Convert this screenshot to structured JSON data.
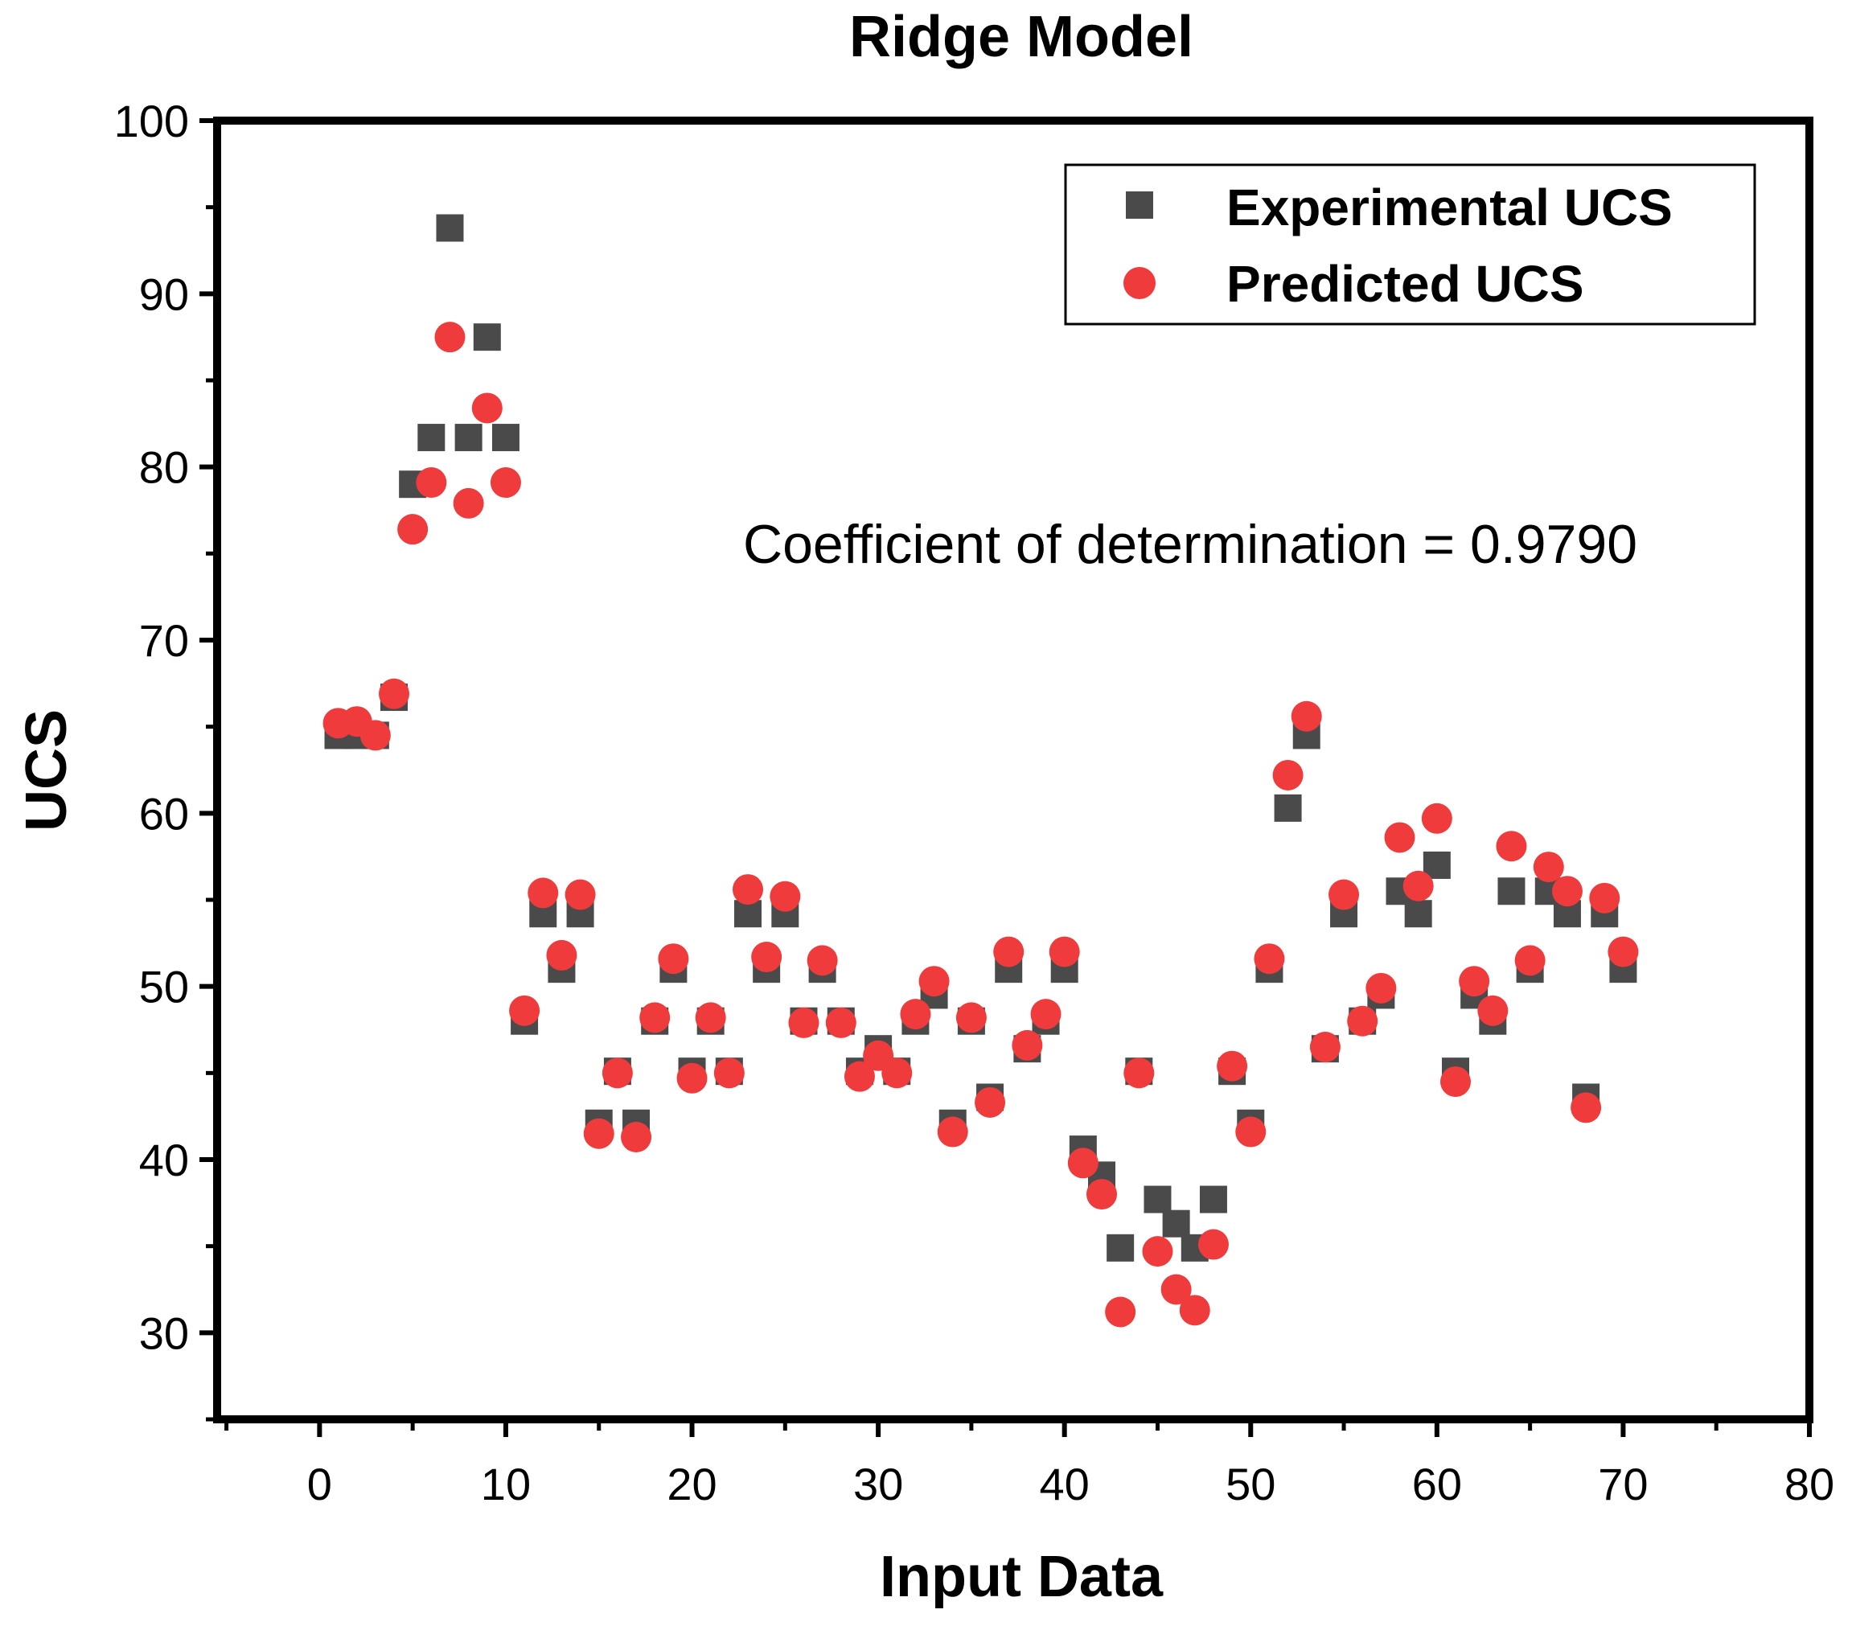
{
  "chart_data": {
    "type": "scatter",
    "title": "Ridge Model",
    "xlabel": "Input Data",
    "ylabel": "UCS",
    "xlim": [
      -5.5,
      80
    ],
    "ylim": [
      25,
      100
    ],
    "xticks": [
      0,
      10,
      20,
      30,
      40,
      50,
      60,
      70,
      80
    ],
    "yticks": [
      30,
      40,
      50,
      60,
      70,
      80,
      90,
      100
    ],
    "legend_position": "top-right",
    "annotation": "Coefficient of determination = 0.9790",
    "colors": {
      "experimental": "#4a4a4a",
      "predicted": "#ef3b3b"
    },
    "x": [
      1,
      2,
      3,
      4,
      5,
      6,
      7,
      8,
      9,
      10,
      11,
      12,
      13,
      14,
      15,
      16,
      17,
      18,
      19,
      20,
      21,
      22,
      23,
      24,
      25,
      26,
      27,
      28,
      29,
      30,
      31,
      32,
      33,
      34,
      35,
      36,
      37,
      38,
      39,
      40,
      41,
      42,
      43,
      44,
      45,
      46,
      47,
      48,
      49,
      50,
      51,
      52,
      53,
      54,
      55,
      56,
      57,
      58,
      59,
      60,
      61,
      62,
      63,
      64,
      65,
      66,
      67,
      68,
      69,
      70
    ],
    "series": [
      {
        "name": "Experimental UCS",
        "marker": "square",
        "values": [
          64.5,
          64.5,
          64.5,
          66.7,
          79.0,
          81.7,
          93.8,
          81.7,
          87.5,
          81.7,
          48.0,
          54.2,
          51.0,
          54.2,
          42.1,
          45.1,
          42.1,
          48.0,
          51.0,
          45.1,
          48.0,
          45.1,
          54.2,
          51.0,
          54.2,
          48.0,
          51.0,
          48.0,
          45.1,
          46.4,
          45.1,
          48.0,
          49.5,
          42.1,
          48.0,
          43.6,
          51.0,
          46.4,
          48.0,
          51.0,
          40.6,
          39.1,
          34.9,
          45.1,
          37.7,
          36.3,
          34.9,
          37.7,
          45.1,
          42.1,
          51.0,
          60.3,
          64.5,
          46.4,
          54.2,
          48.0,
          49.5,
          55.5,
          54.2,
          57.0,
          45.1,
          49.5,
          48.0,
          55.5,
          51.0,
          55.5,
          54.2,
          43.6,
          54.2,
          51.0
        ]
      },
      {
        "name": "Predicted UCS",
        "marker": "circle",
        "values": [
          65.2,
          65.3,
          64.5,
          66.9,
          76.4,
          79.1,
          87.5,
          77.9,
          83.4,
          79.1,
          48.6,
          55.4,
          51.8,
          55.3,
          41.5,
          45.0,
          41.3,
          48.2,
          51.6,
          44.7,
          48.2,
          45.0,
          55.6,
          51.7,
          55.2,
          47.9,
          51.5,
          47.9,
          44.8,
          46.0,
          45.0,
          48.4,
          50.3,
          41.6,
          48.2,
          43.3,
          52.0,
          46.6,
          48.4,
          52.0,
          39.8,
          38.0,
          31.2,
          45.0,
          34.7,
          32.5,
          31.3,
          35.1,
          45.4,
          41.6,
          51.6,
          62.2,
          65.6,
          46.5,
          55.3,
          48.0,
          49.9,
          58.6,
          55.8,
          59.7,
          44.5,
          50.3,
          48.6,
          58.1,
          51.5,
          56.9,
          55.5,
          43.0,
          55.1,
          52.0
        ]
      }
    ]
  }
}
